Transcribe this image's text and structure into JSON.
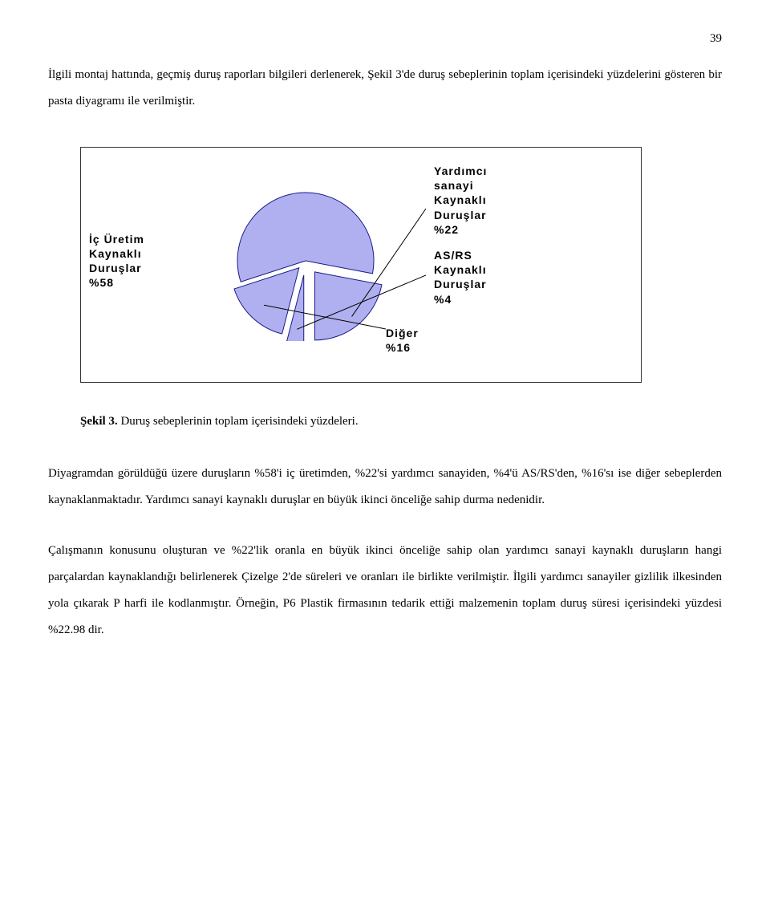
{
  "page_number": "39",
  "intro": "İlgili montaj hattında, geçmiş duruş raporları bilgileri derlenerek, Şekil 3'de duruş sebeplerinin toplam içerisindeki yüzdelerini gösteren bir pasta diyagramı ile verilmiştir.",
  "chart": {
    "type": "pie",
    "slice_fill": "#b0b0f0",
    "slice_stroke": "#1a1a8a",
    "connector_color": "#000000",
    "background": "#ffffff",
    "label_font_family": "Verdana",
    "label_font_weight": "bold",
    "label_font_size": 14,
    "slices": [
      {
        "label_lines": [
          "İç Üretim",
          "Kaynaklı",
          "Duruşlar",
          "%58"
        ],
        "value": 58
      },
      {
        "label_lines": [
          "Yardımcı",
          "sanayi",
          "Kaynaklı",
          "Duruşlar",
          "%22"
        ],
        "value": 22
      },
      {
        "label_lines": [
          "AS/RS",
          "Kaynaklı",
          "Duruşlar",
          "%4"
        ],
        "value": 4
      },
      {
        "label_lines": [
          "Diğer",
          "%16"
        ],
        "value": 16
      }
    ]
  },
  "caption_bold": "Şekil 3.",
  "caption_rest": " Duruş sebeplerinin toplam içerisindeki yüzdeleri.",
  "para2": "Diyagramdan görüldüğü üzere duruşların %58'i iç üretimden, %22'si yardımcı sanayiden, %4'ü AS/RS'den, %16'sı ise diğer sebeplerden kaynaklanmaktadır. Yardımcı sanayi kaynaklı duruşlar en büyük ikinci önceliğe sahip durma nedenidir.",
  "para3": "Çalışmanın konusunu oluşturan ve %22'lik oranla en büyük ikinci önceliğe sahip olan yardımcı sanayi kaynaklı duruşların hangi parçalardan kaynaklandığı belirlenerek Çizelge 2'de süreleri ve oranları ile birlikte  verilmiştir. İlgili yardımcı sanayiler gizlilik ilkesinden yola çıkarak P harfi ile kodlanmıştır. Örneğin, P6 Plastik firmasının tedarik ettiği malzemenin toplam duruş süresi içerisindeki yüzdesi %22.98 dir."
}
